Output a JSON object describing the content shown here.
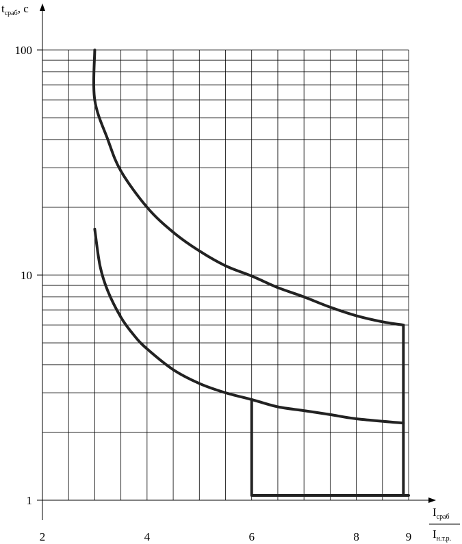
{
  "chart_data": {
    "type": "line",
    "xscale": "linear",
    "yscale": "log",
    "xlim": [
      2,
      9
    ],
    "ylim": [
      1,
      100
    ],
    "x_ticks": [
      "2",
      "4",
      "6",
      "8",
      "9"
    ],
    "x_tick_values": [
      2,
      4,
      6,
      8,
      9
    ],
    "y_ticks": [
      "1",
      "10",
      "100"
    ],
    "y_tick_values": [
      1,
      10,
      100
    ],
    "ylabel_main": "t",
    "ylabel_sub": "сраб",
    "ylabel_unit": ", с",
    "xlabel_num_main": "I",
    "xlabel_num_sub": "сраб",
    "xlabel_den_main": "I",
    "xlabel_den_sub": "н.т.р.",
    "grid": true,
    "grid_x": [
      2,
      2.5,
      3,
      3.5,
      4,
      4.5,
      5,
      5.5,
      6,
      6.5,
      7,
      7.5,
      8,
      8.5,
      9
    ],
    "grid_y": [
      1,
      2,
      3,
      4,
      5,
      6,
      7,
      8,
      9,
      10,
      20,
      30,
      40,
      50,
      60,
      70,
      80,
      90,
      100
    ],
    "series": [
      {
        "values": [
          [
            3,
            100
          ],
          [
            3,
            60
          ],
          [
            3.25,
            40
          ],
          [
            3.5,
            29
          ],
          [
            4,
            20
          ],
          [
            4.5,
            15.5
          ],
          [
            5,
            12.8
          ],
          [
            5.5,
            11
          ],
          [
            6,
            9.9
          ],
          [
            6.5,
            8.8
          ],
          [
            7,
            8
          ],
          [
            7.5,
            7.2
          ],
          [
            8,
            6.6
          ],
          [
            8.5,
            6.2
          ],
          [
            8.9,
            6
          ]
        ]
      },
      {
        "values": [
          [
            3,
            16
          ],
          [
            3.1,
            11
          ],
          [
            3.25,
            8.5
          ],
          [
            3.5,
            6.5
          ],
          [
            3.75,
            5.4
          ],
          [
            4,
            4.7
          ],
          [
            4.5,
            3.8
          ],
          [
            5,
            3.3
          ],
          [
            5.5,
            3
          ],
          [
            6,
            2.8
          ],
          [
            6.5,
            2.6
          ],
          [
            7,
            2.5
          ],
          [
            7.5,
            2.4
          ],
          [
            8,
            2.3
          ],
          [
            8.9,
            2.2
          ]
        ]
      },
      {
        "values": [
          [
            6,
            2.8
          ],
          [
            6,
            1.05
          ],
          [
            9,
            1.05
          ]
        ]
      },
      {
        "values": [
          [
            8.9,
            6
          ],
          [
            8.9,
            1.05
          ]
        ]
      }
    ]
  }
}
